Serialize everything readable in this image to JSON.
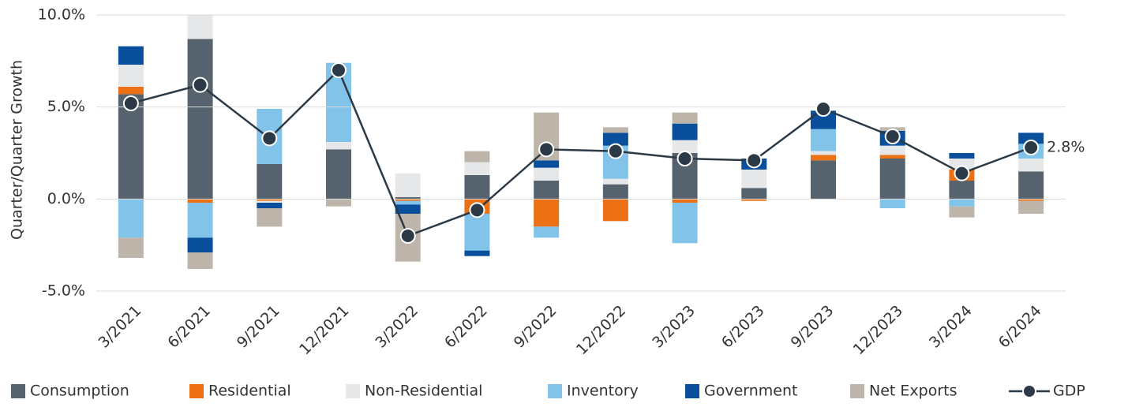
{
  "chart_data": {
    "type": "stacked_bar_line",
    "y_label": "Quarter/Quarter Growth",
    "categories": [
      "3/2021",
      "6/2021",
      "9/2021",
      "12/2021",
      "3/2022",
      "6/2022",
      "9/2022",
      "12/2022",
      "3/2023",
      "6/2023",
      "9/2023",
      "12/2023",
      "3/2024",
      "6/2024"
    ],
    "series": [
      {
        "name": "Consumption",
        "color": "#56636e",
        "values": [
          5.7,
          8.7,
          1.9,
          2.7,
          0.1,
          1.3,
          1.0,
          0.8,
          2.5,
          0.6,
          2.1,
          2.2,
          1.0,
          1.5
        ]
      },
      {
        "name": "Residential",
        "color": "#ec7014",
        "values": [
          0.4,
          -0.2,
          -0.1,
          0,
          -0.1,
          -0.8,
          -1.5,
          -1.2,
          -0.2,
          -0.1,
          0.3,
          0.2,
          0.6,
          -0.1
        ]
      },
      {
        "name": "Non-Residential",
        "color": "#e6e7e8",
        "values": [
          1.2,
          1.3,
          -0.1,
          0.4,
          1.3,
          0.7,
          0.7,
          0.3,
          0.7,
          1.0,
          0.2,
          0.5,
          0.6,
          0.7
        ]
      },
      {
        "name": "Inventory",
        "color": "#82c3ea",
        "values": [
          -2.1,
          -1.9,
          3.0,
          4.3,
          -0.2,
          -2.0,
          -0.6,
          1.8,
          -2.2,
          0,
          1.2,
          -0.5,
          -0.4,
          0.8
        ]
      },
      {
        "name": "Government",
        "color": "#0a4f9c",
        "values": [
          1.0,
          -0.8,
          -0.3,
          0,
          -0.5,
          -0.3,
          0.4,
          0.7,
          0.9,
          0.6,
          1.0,
          0.8,
          0.3,
          0.6
        ]
      },
      {
        "name": "Net Exports",
        "color": "#bdb5aa",
        "values": [
          -1.1,
          -0.9,
          -1.0,
          -0.4,
          -2.6,
          0.6,
          2.6,
          0.3,
          0.6,
          0,
          0,
          0.2,
          -0.6,
          -0.7
        ]
      },
      {
        "name": "GDP",
        "type": "line",
        "color": "#2c3a47",
        "values": [
          5.2,
          6.2,
          3.3,
          7.0,
          -2.0,
          -0.6,
          2.7,
          2.6,
          2.2,
          2.1,
          4.9,
          3.4,
          1.4,
          2.8
        ],
        "value_labels": [
          null,
          null,
          null,
          null,
          null,
          null,
          null,
          null,
          null,
          null,
          null,
          null,
          null,
          "2.8%"
        ]
      }
    ],
    "ylim": [
      -5,
      10
    ],
    "yticks": [
      {
        "value": -5,
        "label": "-5.0%"
      },
      {
        "value": 0,
        "label": "0.0%"
      },
      {
        "value": 5,
        "label": "5.0%"
      },
      {
        "value": 10,
        "label": "10.0%"
      }
    ],
    "grid": true,
    "legend": "bottom"
  }
}
